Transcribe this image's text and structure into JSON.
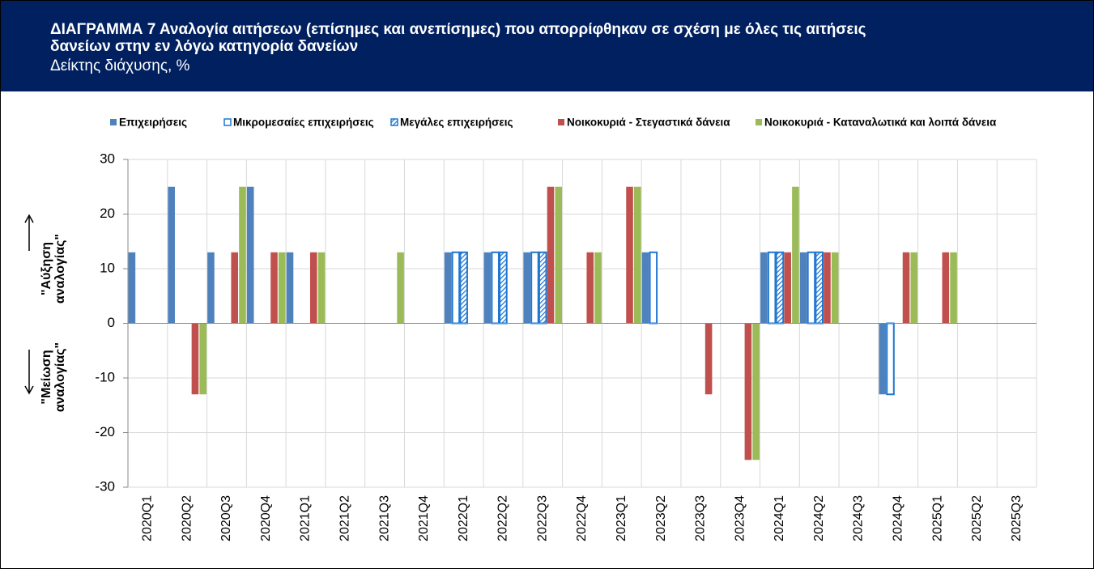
{
  "header": {
    "title_lines": [
      "ΔΙΑΓΡΑΜΜΑ 7 Αναλογία αιτήσεων (επίσημες και ανεπίσημες) που απορρίφθηκαν σε σχέση με όλες τις αιτήσεις",
      "δανείων στην εν λόγω κατηγορία δανείων"
    ],
    "subtitle": "Δείκτης διάχυσης, %"
  },
  "chart_data": {
    "type": "bar",
    "categories": [
      "2020Q1",
      "2020Q2",
      "2020Q3",
      "2020Q4",
      "2021Q1",
      "2021Q2",
      "2021Q3",
      "2021Q4",
      "2022Q1",
      "2022Q2",
      "2022Q3",
      "2022Q4",
      "2023Q1",
      "2023Q2",
      "2023Q3",
      "2023Q4",
      "2024Q1",
      "2024Q2",
      "2024Q3",
      "2024Q4",
      "2025Q1",
      "2025Q2",
      "2025Q3"
    ],
    "series": [
      {
        "name": "Επιχειρήσεις",
        "color": "#4f81bd",
        "fill": "solid",
        "values": [
          13,
          25,
          13,
          25,
          13,
          0,
          0,
          0,
          13,
          13,
          13,
          0,
          0,
          13,
          0,
          0,
          13,
          13,
          0,
          -13,
          0,
          0,
          0
        ]
      },
      {
        "name": "Μικρομεσαίες επιχειρήσεις",
        "color": "#1f77d0",
        "fill": "outline",
        "values": [
          0,
          0,
          0,
          0,
          0,
          0,
          0,
          0,
          13,
          13,
          13,
          0,
          0,
          13,
          0,
          0,
          13,
          13,
          0,
          -13,
          0,
          0,
          0
        ]
      },
      {
        "name": "Μεγάλες επιχειρήσεις",
        "color": "#1f77d0",
        "fill": "hatch",
        "values": [
          0,
          0,
          0,
          0,
          0,
          0,
          0,
          0,
          13,
          13,
          13,
          0,
          0,
          0,
          0,
          0,
          13,
          13,
          0,
          0,
          0,
          0,
          0
        ]
      },
      {
        "name": "Νοικοκυριά - Στεγαστικά δάνεια",
        "color": "#c0504d",
        "fill": "solid",
        "values": [
          0,
          -13,
          13,
          13,
          13,
          0,
          0,
          0,
          0,
          0,
          25,
          13,
          25,
          0,
          -13,
          -25,
          13,
          13,
          0,
          13,
          13,
          0,
          0
        ]
      },
      {
        "name": "Νοικοκυριά - Καταναλωτικά και λοιπά δάνεια",
        "color": "#9bbb59",
        "fill": "solid",
        "values": [
          0,
          -13,
          25,
          13,
          13,
          0,
          13,
          0,
          0,
          0,
          25,
          13,
          25,
          0,
          0,
          -25,
          25,
          13,
          0,
          13,
          13,
          0,
          0
        ]
      }
    ],
    "ylim": [
      -30,
      30
    ],
    "yticks": [
      -30,
      -20,
      -10,
      0,
      10,
      20,
      30
    ],
    "grid": true,
    "legend": "top",
    "annotations": [
      [
        "\"Αύξηση",
        "αναλογίας\""
      ],
      [
        "\"Μείωση",
        "αναλογίας\""
      ]
    ]
  }
}
